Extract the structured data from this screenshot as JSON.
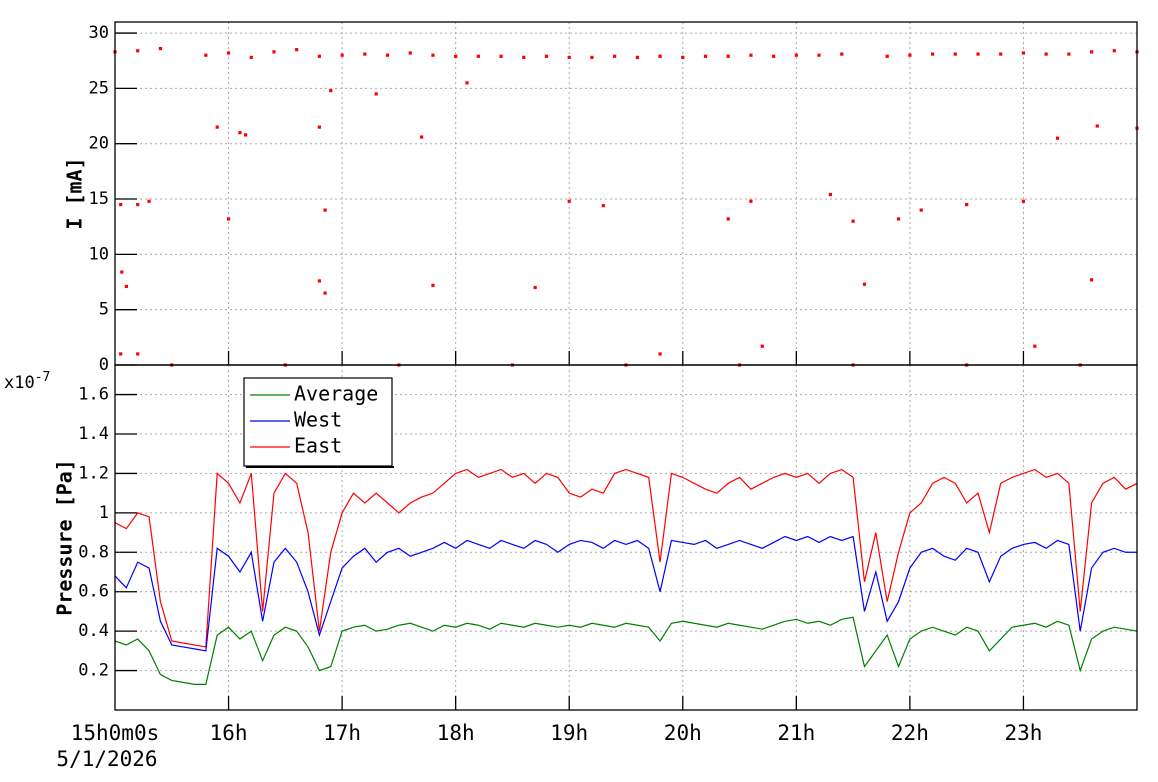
{
  "chart_data": [
    {
      "type": "scatter",
      "ylabel": "I [mA]",
      "color": "#ff0000",
      "grid": true,
      "xlim": [
        15,
        24
      ],
      "ylim": [
        0,
        31
      ],
      "xticks": [
        16,
        17,
        18,
        19,
        20,
        21,
        22,
        23
      ],
      "yticks": [
        0,
        5,
        10,
        15,
        20,
        25,
        30
      ],
      "x": [
        15.0,
        15.2,
        15.4,
        15.8,
        16.0,
        16.2,
        16.4,
        16.6,
        16.8,
        17.0,
        17.2,
        17.4,
        17.6,
        17.8,
        18.0,
        18.2,
        18.4,
        18.6,
        18.8,
        19.0,
        19.2,
        19.4,
        19.6,
        19.8,
        20.0,
        20.2,
        20.4,
        20.6,
        20.8,
        21.0,
        21.2,
        21.4,
        21.8,
        22.0,
        22.2,
        22.4,
        22.6,
        22.8,
        23.0,
        23.2,
        23.4,
        23.6,
        23.8,
        24.0,
        15.05,
        15.2,
        15.3,
        15.06,
        15.1,
        15.05,
        15.2,
        15.9,
        16.0,
        16.1,
        16.15,
        16.8,
        16.85,
        16.8,
        16.85,
        16.9,
        17.3,
        17.7,
        17.8,
        18.1,
        18.7,
        19.0,
        19.3,
        19.8,
        20.4,
        20.6,
        20.7,
        21.3,
        21.5,
        21.6,
        21.9,
        22.1,
        22.5,
        23.0,
        23.1,
        23.3,
        23.6,
        23.65,
        24.0,
        15.5,
        16.5,
        17.5,
        18.5,
        19.5,
        20.5,
        21.5,
        22.5,
        23.5
      ],
      "y": [
        28.3,
        28.4,
        28.6,
        28.0,
        28.2,
        27.8,
        28.3,
        28.5,
        27.9,
        28.0,
        28.1,
        28.0,
        28.2,
        28.0,
        27.9,
        27.9,
        27.9,
        27.8,
        27.9,
        27.8,
        27.8,
        27.9,
        27.8,
        27.9,
        27.8,
        27.9,
        27.9,
        28.0,
        27.9,
        28.0,
        28.0,
        28.1,
        27.9,
        28.0,
        28.1,
        28.1,
        28.1,
        28.1,
        28.2,
        28.1,
        28.1,
        28.3,
        28.4,
        28.3,
        14.5,
        14.5,
        14.8,
        8.4,
        7.1,
        1.0,
        1.0,
        21.5,
        13.2,
        21.0,
        20.8,
        7.6,
        14.0,
        21.5,
        6.5,
        24.8,
        24.5,
        20.6,
        7.2,
        25.5,
        7.0,
        14.8,
        14.4,
        1.0,
        13.2,
        14.8,
        1.7,
        15.4,
        13.0,
        7.3,
        13.2,
        14.0,
        14.5,
        14.8,
        1.7,
        20.5,
        7.7,
        21.6,
        21.4,
        0,
        0,
        0,
        0,
        0,
        0,
        0,
        0,
        0
      ]
    },
    {
      "type": "line",
      "ylabel": "Pressure [Pa]",
      "multiplier_base": "x10",
      "multiplier_exponent": "-7",
      "time_offset_label": "15h0m0s",
      "date_label": "5/1/2026",
      "grid": true,
      "legend": "upper left",
      "xlim": [
        15,
        24
      ],
      "ylim": [
        0,
        1.75
      ],
      "xticks": [
        {
          "value": 16,
          "label": "16h"
        },
        {
          "value": 17,
          "label": "17h"
        },
        {
          "value": 18,
          "label": "18h"
        },
        {
          "value": 19,
          "label": "19h"
        },
        {
          "value": 20,
          "label": "20h"
        },
        {
          "value": 21,
          "label": "21h"
        },
        {
          "value": 22,
          "label": "22h"
        },
        {
          "value": 23,
          "label": "23h"
        }
      ],
      "yticks": [
        0.2,
        0.4,
        0.6,
        0.8,
        1,
        1.2,
        1.4,
        1.6
      ],
      "x": [
        15.0,
        15.1,
        15.2,
        15.3,
        15.4,
        15.5,
        15.6,
        15.7,
        15.8,
        15.9,
        16.0,
        16.1,
        16.2,
        16.3,
        16.4,
        16.5,
        16.6,
        16.7,
        16.8,
        16.9,
        17.0,
        17.1,
        17.2,
        17.3,
        17.4,
        17.5,
        17.6,
        17.7,
        17.8,
        17.9,
        18.0,
        18.1,
        18.2,
        18.3,
        18.4,
        18.5,
        18.6,
        18.7,
        18.8,
        18.9,
        19.0,
        19.1,
        19.2,
        19.3,
        19.4,
        19.5,
        19.6,
        19.7,
        19.8,
        19.9,
        20.0,
        20.1,
        20.2,
        20.3,
        20.4,
        20.5,
        20.6,
        20.7,
        20.8,
        20.9,
        21.0,
        21.1,
        21.2,
        21.3,
        21.4,
        21.5,
        21.6,
        21.7,
        21.8,
        21.9,
        22.0,
        22.1,
        22.2,
        22.3,
        22.4,
        22.5,
        22.6,
        22.7,
        22.8,
        22.9,
        23.0,
        23.1,
        23.2,
        23.3,
        23.4,
        23.5,
        23.6,
        23.7,
        23.8,
        23.9,
        24.0
      ],
      "series": [
        {
          "name": "Average",
          "color": "#008000",
          "values": [
            0.35,
            0.33,
            0.36,
            0.3,
            0.18,
            0.15,
            0.14,
            0.13,
            0.13,
            0.38,
            0.42,
            0.36,
            0.4,
            0.25,
            0.38,
            0.42,
            0.4,
            0.32,
            0.2,
            0.22,
            0.4,
            0.42,
            0.43,
            0.4,
            0.41,
            0.43,
            0.44,
            0.42,
            0.4,
            0.43,
            0.42,
            0.44,
            0.43,
            0.41,
            0.44,
            0.43,
            0.42,
            0.44,
            0.43,
            0.42,
            0.43,
            0.42,
            0.44,
            0.43,
            0.42,
            0.44,
            0.43,
            0.42,
            0.35,
            0.44,
            0.45,
            0.44,
            0.43,
            0.42,
            0.44,
            0.43,
            0.42,
            0.41,
            0.43,
            0.45,
            0.46,
            0.44,
            0.45,
            0.43,
            0.46,
            0.47,
            0.22,
            0.3,
            0.38,
            0.22,
            0.36,
            0.4,
            0.42,
            0.4,
            0.38,
            0.42,
            0.4,
            0.3,
            0.36,
            0.42,
            0.43,
            0.44,
            0.42,
            0.45,
            0.43,
            0.2,
            0.36,
            0.4,
            0.42,
            0.41,
            0.4
          ]
        },
        {
          "name": "West",
          "color": "#0000ff",
          "values": [
            0.68,
            0.62,
            0.75,
            0.72,
            0.45,
            0.33,
            0.32,
            0.31,
            0.3,
            0.82,
            0.78,
            0.7,
            0.8,
            0.45,
            0.75,
            0.82,
            0.75,
            0.6,
            0.38,
            0.55,
            0.72,
            0.78,
            0.82,
            0.75,
            0.8,
            0.82,
            0.78,
            0.8,
            0.82,
            0.85,
            0.82,
            0.86,
            0.84,
            0.82,
            0.86,
            0.84,
            0.82,
            0.86,
            0.84,
            0.8,
            0.84,
            0.86,
            0.85,
            0.82,
            0.86,
            0.84,
            0.86,
            0.82,
            0.6,
            0.86,
            0.85,
            0.84,
            0.86,
            0.82,
            0.84,
            0.86,
            0.84,
            0.82,
            0.85,
            0.88,
            0.86,
            0.88,
            0.85,
            0.88,
            0.86,
            0.88,
            0.5,
            0.7,
            0.45,
            0.55,
            0.72,
            0.8,
            0.82,
            0.78,
            0.76,
            0.82,
            0.8,
            0.65,
            0.78,
            0.82,
            0.84,
            0.85,
            0.82,
            0.86,
            0.84,
            0.4,
            0.72,
            0.8,
            0.82,
            0.8,
            0.8
          ]
        },
        {
          "name": "East",
          "color": "#ff0000",
          "values": [
            0.95,
            0.92,
            1.0,
            0.98,
            0.55,
            0.35,
            0.34,
            0.33,
            0.32,
            1.2,
            1.15,
            1.05,
            1.2,
            0.5,
            1.1,
            1.2,
            1.15,
            0.9,
            0.4,
            0.8,
            1.0,
            1.1,
            1.05,
            1.1,
            1.05,
            1.0,
            1.05,
            1.08,
            1.1,
            1.15,
            1.2,
            1.22,
            1.18,
            1.2,
            1.22,
            1.18,
            1.2,
            1.15,
            1.2,
            1.18,
            1.1,
            1.08,
            1.12,
            1.1,
            1.2,
            1.22,
            1.2,
            1.18,
            0.75,
            1.2,
            1.18,
            1.15,
            1.12,
            1.1,
            1.15,
            1.18,
            1.12,
            1.15,
            1.18,
            1.2,
            1.18,
            1.2,
            1.15,
            1.2,
            1.22,
            1.18,
            0.65,
            0.9,
            0.55,
            0.8,
            1.0,
            1.05,
            1.15,
            1.18,
            1.15,
            1.05,
            1.1,
            0.9,
            1.15,
            1.18,
            1.2,
            1.22,
            1.18,
            1.2,
            1.15,
            0.5,
            1.05,
            1.15,
            1.18,
            1.12,
            1.15
          ]
        }
      ]
    }
  ]
}
